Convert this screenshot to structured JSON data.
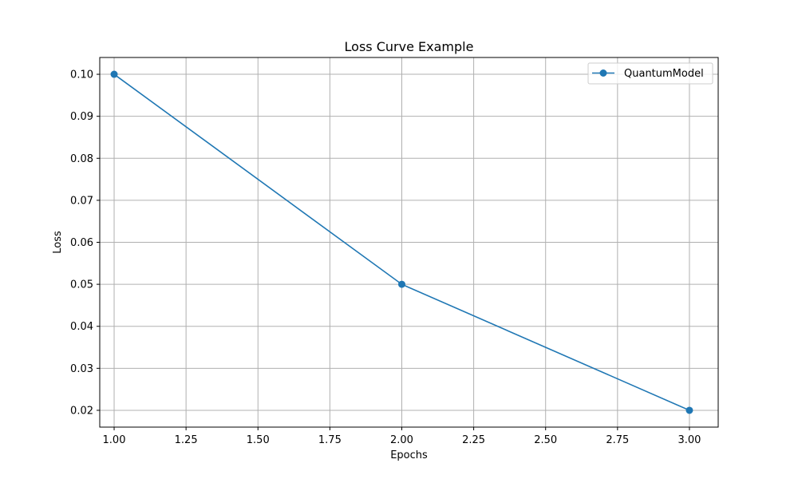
{
  "chart_data": {
    "type": "line",
    "title": "Loss Curve Example",
    "xlabel": "Epochs",
    "ylabel": "Loss",
    "xlim": [
      0.95,
      3.1
    ],
    "ylim": [
      0.016,
      0.104
    ],
    "xticks": [
      1.0,
      1.25,
      1.5,
      1.75,
      2.0,
      2.25,
      2.5,
      2.75,
      3.0
    ],
    "xtick_labels": [
      "1.00",
      "1.25",
      "1.50",
      "1.75",
      "2.00",
      "2.25",
      "2.50",
      "2.75",
      "3.00"
    ],
    "yticks": [
      0.02,
      0.03,
      0.04,
      0.05,
      0.06,
      0.07,
      0.08,
      0.09,
      0.1
    ],
    "ytick_labels": [
      "0.02",
      "0.03",
      "0.04",
      "0.05",
      "0.06",
      "0.07",
      "0.08",
      "0.09",
      "0.10"
    ],
    "grid": true,
    "legend_position": "top-right",
    "series": [
      {
        "name": "QuantumModel",
        "color": "#1f77b4",
        "marker": "circle",
        "x": [
          1,
          2,
          3
        ],
        "y": [
          0.1,
          0.05,
          0.02
        ]
      }
    ]
  }
}
